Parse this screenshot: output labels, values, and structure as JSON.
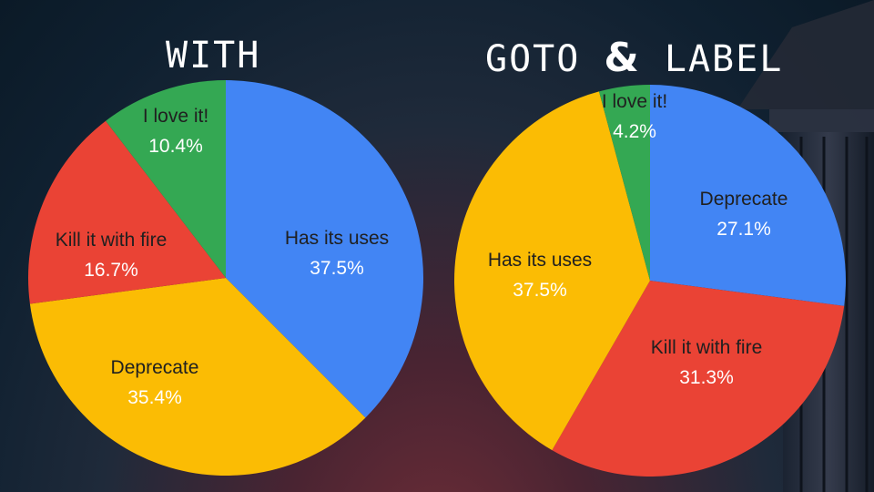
{
  "colors": {
    "blue": "#4285f4",
    "red": "#ea4335",
    "yellow": "#fbbc04",
    "green": "#34a853"
  },
  "chart_data": [
    {
      "type": "pie",
      "title": "WITH",
      "slices": [
        {
          "label": "Has its uses",
          "value": 37.5,
          "value_label": "37.5%",
          "color": "#4285f4"
        },
        {
          "label": "Deprecate",
          "value": 35.4,
          "value_label": "35.4%",
          "color": "#fbbc04"
        },
        {
          "label": "Kill it with fire",
          "value": 16.7,
          "value_label": "16.7%",
          "color": "#ea4335"
        },
        {
          "label": "I love it!",
          "value": 10.4,
          "value_label": "10.4%",
          "color": "#34a853"
        }
      ]
    },
    {
      "type": "pie",
      "title_part1": "GOTO",
      "title_amp": "&",
      "title_part2": "LABEL",
      "slices": [
        {
          "label": "Deprecate",
          "value": 27.1,
          "value_label": "27.1%",
          "color": "#4285f4"
        },
        {
          "label": "Kill it with fire",
          "value": 31.3,
          "value_label": "31.3%",
          "color": "#ea4335"
        },
        {
          "label": "Has its uses",
          "value": 37.5,
          "value_label": "37.5%",
          "color": "#fbbc04"
        },
        {
          "label": "I love it!",
          "value": 4.2,
          "value_label": "4.2%",
          "color": "#34a853"
        }
      ]
    }
  ]
}
